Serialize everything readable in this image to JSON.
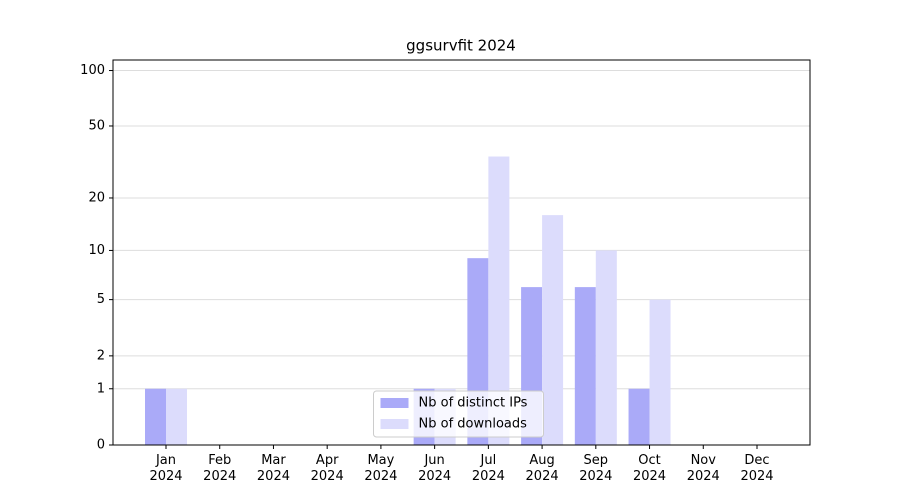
{
  "chart_data": {
    "type": "bar",
    "title": "ggsurvfit 2024",
    "categories": [
      "Jan\n2024",
      "Feb\n2024",
      "Mar\n2024",
      "Apr\n2024",
      "May\n2024",
      "Jun\n2024",
      "Jul\n2024",
      "Aug\n2024",
      "Sep\n2024",
      "Oct\n2024",
      "Nov\n2024",
      "Dec\n2024"
    ],
    "series": [
      {
        "name": "Nb of distinct IPs",
        "color": "#aaaaf8",
        "values": [
          1,
          0,
          0,
          0,
          0,
          1,
          9,
          6,
          6,
          1,
          0,
          0
        ]
      },
      {
        "name": "Nb of downloads",
        "color": "#dcdcfc",
        "values": [
          1,
          0,
          0,
          0,
          0,
          1,
          34,
          16,
          10,
          5,
          0,
          0
        ]
      }
    ],
    "yscale": "log1p",
    "ylim": [
      0,
      114
    ],
    "yticks": [
      0,
      1,
      2,
      5,
      10,
      20,
      50,
      100
    ],
    "grid": true,
    "legend": "lower center"
  }
}
